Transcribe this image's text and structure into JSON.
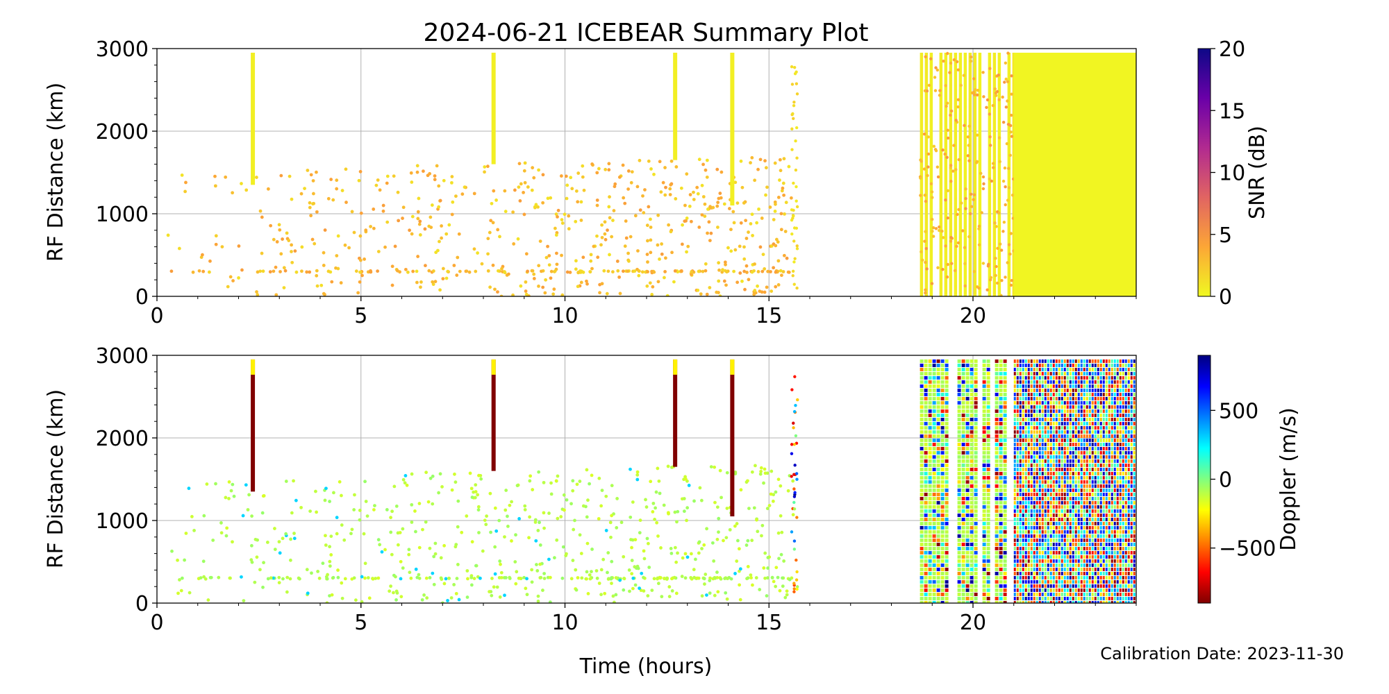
{
  "figure": {
    "title": "2024-06-21 ICEBEAR Summary Plot",
    "calibration_note": "Calibration Date: 2023-11-30"
  },
  "chart_data": [
    {
      "type": "scatter",
      "panel": "top",
      "xlabel": "Time (hours)",
      "ylabel": "RF Distance (km)",
      "xlim": [
        0,
        24
      ],
      "ylim": [
        0,
        3000
      ],
      "xticks": [
        0,
        5,
        10,
        15,
        20
      ],
      "yticks": [
        0,
        1000,
        2000,
        3000
      ],
      "grid": true,
      "color_variable": "SNR (dB)",
      "colorbar": {
        "label": "SNR (dB)",
        "range": [
          0,
          20
        ],
        "ticks": [
          0,
          5,
          10,
          15,
          20
        ],
        "colormap": "plasma_r",
        "stops": [
          "#f0f921",
          "#fca636",
          "#e16462",
          "#b12a90",
          "#6a00a8",
          "#0d0887"
        ]
      },
      "vertical_streaks": [
        {
          "time": 2.35,
          "range_km": [
            1350,
            2950
          ],
          "snr_db": 0.5
        },
        {
          "time": 8.25,
          "range_km": [
            1600,
            2950
          ],
          "snr_db": 0.5
        },
        {
          "time": 12.7,
          "range_km": [
            1650,
            2950
          ],
          "snr_db": 0.5
        },
        {
          "time": 14.1,
          "range_km": [
            1100,
            2950
          ],
          "snr_db": 0.5
        }
      ],
      "dense_regions": [
        {
          "time_range": [
            18.7,
            21.0
          ],
          "range_km": [
            0,
            2950
          ],
          "snr_db": 0.3,
          "note": "striped"
        },
        {
          "time_range": [
            21.0,
            24.0
          ],
          "range_km": [
            0,
            2950
          ],
          "snr_db": 0.2,
          "note": "solid"
        }
      ],
      "scattered_echoes": {
        "time_range": [
          0,
          15.6
        ],
        "range_km": [
          0,
          1700
        ],
        "snr_db_range": [
          1,
          5
        ]
      }
    },
    {
      "type": "scatter",
      "panel": "bottom",
      "xlabel": "Time (hours)",
      "ylabel": "RF Distance (km)",
      "xlim": [
        0,
        24
      ],
      "ylim": [
        0,
        3000
      ],
      "xticks": [
        0,
        5,
        10,
        15,
        20
      ],
      "yticks": [
        0,
        1000,
        2000,
        3000
      ],
      "grid": true,
      "color_variable": "Doppler (m/s)",
      "colorbar": {
        "label": "Doppler (m/s)",
        "range": [
          -900,
          900
        ],
        "ticks": [
          -500,
          0,
          500
        ],
        "tick_labels": [
          "−500",
          "0",
          "500"
        ],
        "colormap": "jet_r",
        "stops": [
          "#800000",
          "#ff0000",
          "#ff8000",
          "#ffff00",
          "#80ff80",
          "#00ffff",
          "#0080ff",
          "#0000ff",
          "#000080"
        ]
      },
      "vertical_streaks": [
        {
          "time": 2.35,
          "range_km": [
            1350,
            2950
          ],
          "doppler_ms": -900
        },
        {
          "time": 8.25,
          "range_km": [
            1600,
            2950
          ],
          "doppler_ms": -900
        },
        {
          "time": 12.7,
          "range_km": [
            1650,
            2950
          ],
          "doppler_ms": -900
        },
        {
          "time": 14.1,
          "range_km": [
            1050,
            2950
          ],
          "doppler_ms": -900
        }
      ],
      "dense_regions": [
        {
          "time_range": [
            18.7,
            21.0
          ],
          "range_km": [
            0,
            2950
          ],
          "doppler_ms_range": [
            -900,
            900
          ],
          "note": "mixed striped"
        },
        {
          "time_range": [
            21.0,
            24.0
          ],
          "range_km": [
            0,
            2950
          ],
          "doppler_ms_range": [
            -900,
            900
          ],
          "note": "mixed dense"
        }
      ],
      "scattered_echoes": {
        "time_range": [
          0,
          15.6
        ],
        "range_km": [
          0,
          1700
        ],
        "doppler_ms": -100
      }
    }
  ]
}
